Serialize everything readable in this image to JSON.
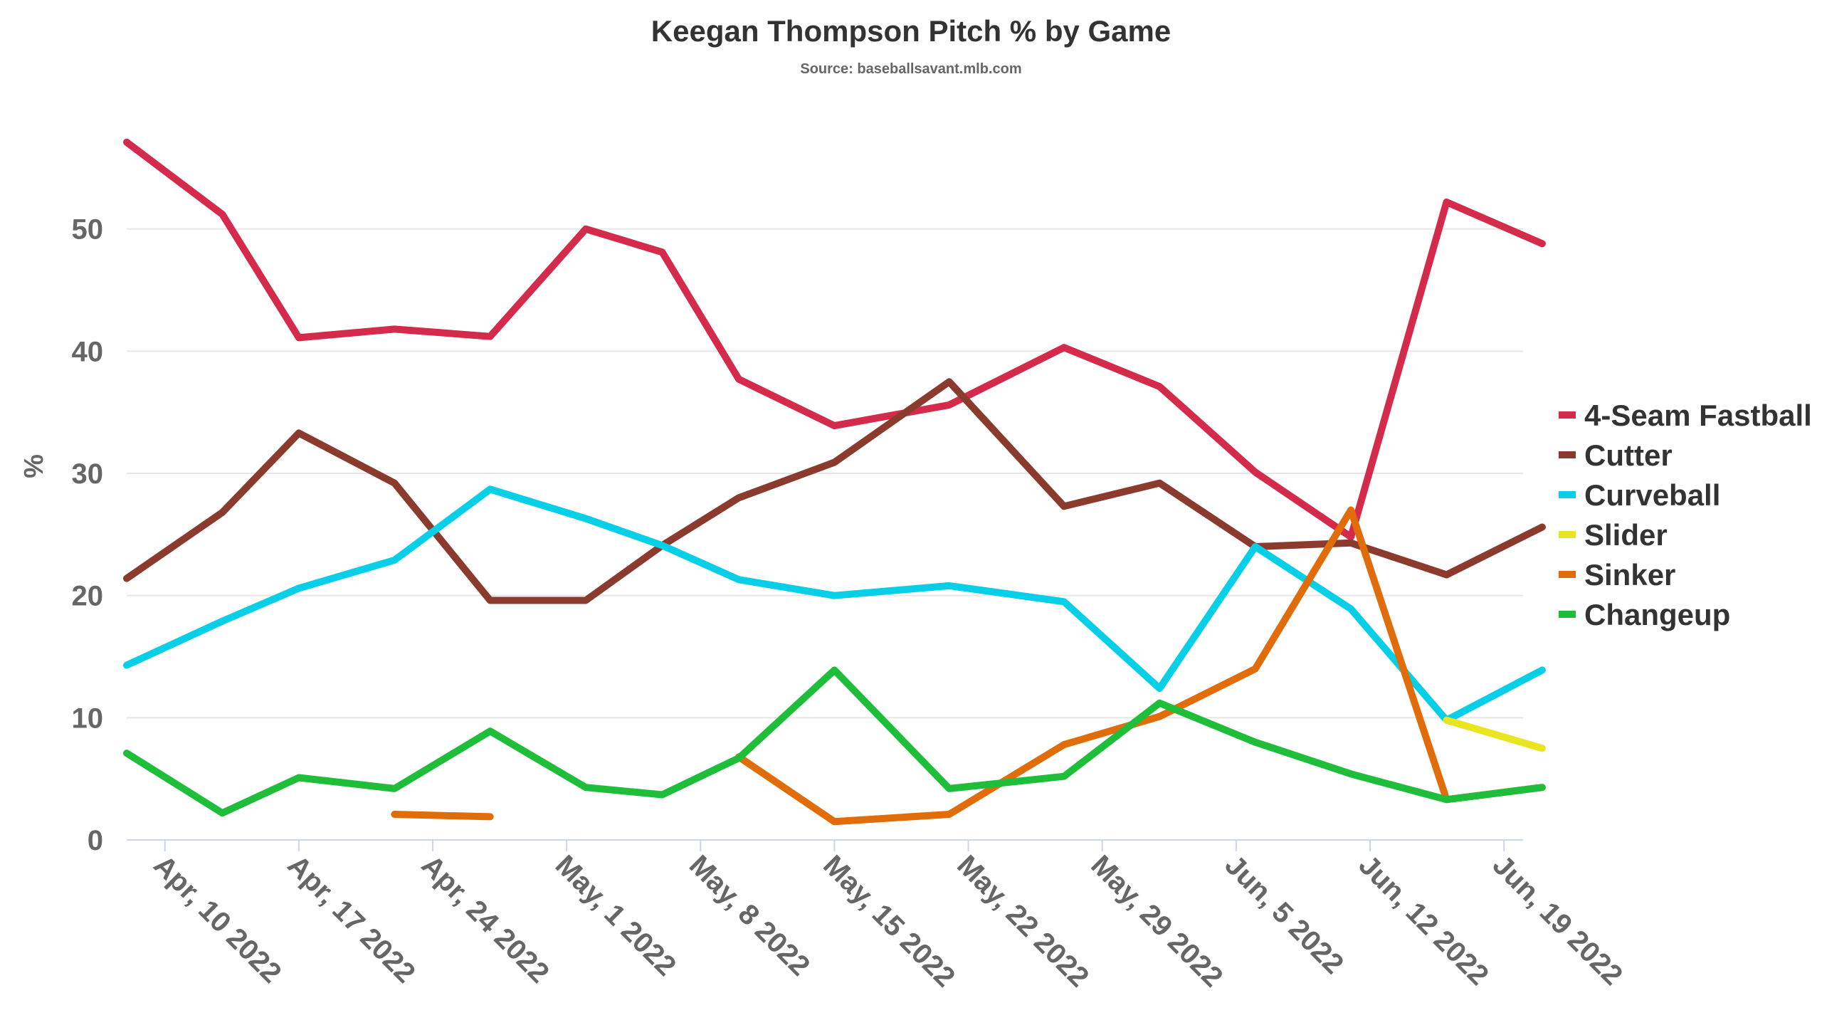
{
  "title": "Keegan Thompson Pitch % by Game",
  "subtitle": "Source: baseballsavant.mlb.com",
  "chart_data": {
    "type": "line",
    "title": "Keegan Thompson Pitch % by Game",
    "subtitle": "Source: baseballsavant.mlb.com",
    "ylabel": "%",
    "xlabel": "",
    "ylim": [
      0,
      60
    ],
    "yticks": [
      "0",
      "10",
      "20",
      "30",
      "40",
      "50"
    ],
    "xlim": [
      "2022-04-08",
      "2022-06-20"
    ],
    "xticks": [
      {
        "date": "2022-04-10",
        "label": "Apr, 10 2022"
      },
      {
        "date": "2022-04-17",
        "label": "Apr, 17 2022"
      },
      {
        "date": "2022-04-24",
        "label": "Apr, 24 2022"
      },
      {
        "date": "2022-05-01",
        "label": "May, 1 2022"
      },
      {
        "date": "2022-05-08",
        "label": "May, 8 2022"
      },
      {
        "date": "2022-05-15",
        "label": "May, 15 2022"
      },
      {
        "date": "2022-05-22",
        "label": "May, 22 2022"
      },
      {
        "date": "2022-05-29",
        "label": "May, 29 2022"
      },
      {
        "date": "2022-06-05",
        "label": "Jun, 5 2022"
      },
      {
        "date": "2022-06-12",
        "label": "Jun, 12 2022"
      },
      {
        "date": "2022-06-19",
        "label": "Jun, 19 2022"
      }
    ],
    "x": [
      "2022-04-08",
      "2022-04-13",
      "2022-04-17",
      "2022-04-22",
      "2022-04-27",
      "2022-05-02",
      "2022-05-06",
      "2022-05-10",
      "2022-05-15",
      "2022-05-21",
      "2022-05-27",
      "2022-06-01",
      "2022-06-06",
      "2022-06-11",
      "2022-06-16",
      "2022-06-21"
    ],
    "grid": true,
    "legend_position": "right",
    "series": [
      {
        "name": "4-Seam Fastball",
        "color": "#d42a4c",
        "values": [
          57.1,
          51.2,
          41.1,
          41.8,
          41.2,
          50.0,
          48.1,
          37.7,
          33.9,
          35.6,
          40.3,
          37.1,
          30.1,
          24.8,
          52.2,
          48.8
        ]
      },
      {
        "name": "Cutter",
        "color": "#8b3a2e",
        "values": [
          21.4,
          26.8,
          33.3,
          29.2,
          19.6,
          19.6,
          24.1,
          28.0,
          30.9,
          37.5,
          27.3,
          29.2,
          24.0,
          24.3,
          21.7,
          25.6
        ]
      },
      {
        "name": "Curveball",
        "color": "#07cfe8",
        "values": [
          14.3,
          17.9,
          20.6,
          22.9,
          28.7,
          26.3,
          24.1,
          21.3,
          20.0,
          20.8,
          19.5,
          12.4,
          24.0,
          18.9,
          9.8,
          13.9
        ]
      },
      {
        "name": "Slider",
        "color": "#e9e520",
        "values": [
          null,
          null,
          null,
          null,
          null,
          null,
          null,
          null,
          null,
          null,
          null,
          null,
          null,
          null,
          9.8,
          7.5
        ]
      },
      {
        "name": "Sinker",
        "color": "#e06d09",
        "values": [
          null,
          null,
          null,
          2.1,
          1.9,
          null,
          null,
          6.8,
          1.5,
          2.1,
          7.8,
          10.1,
          14.0,
          27.0,
          3.3,
          4.3
        ]
      },
      {
        "name": "Changeup",
        "color": "#1fbe3a",
        "values": [
          7.1,
          2.2,
          5.1,
          4.2,
          8.9,
          4.3,
          3.7,
          6.7,
          13.9,
          4.2,
          5.2,
          11.2,
          8.0,
          5.4,
          3.3,
          4.3
        ]
      }
    ]
  }
}
